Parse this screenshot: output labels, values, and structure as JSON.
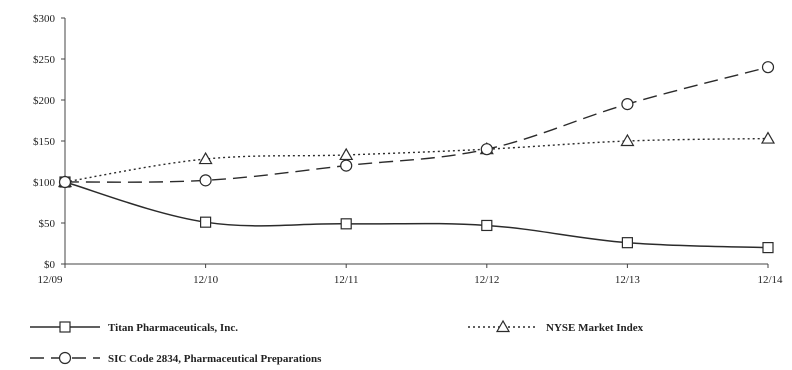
{
  "chart_data": {
    "type": "line",
    "title": "",
    "xlabel": "",
    "ylabel": "",
    "categories": [
      "12/09",
      "12/10",
      "12/11",
      "12/12",
      "12/13",
      "12/14"
    ],
    "y_tick_labels": [
      "$0",
      "$50",
      "$100",
      "$150",
      "$200",
      "$250",
      "$300"
    ],
    "y_ticks": [
      0,
      50,
      100,
      150,
      200,
      250,
      300
    ],
    "ylim": [
      0,
      300
    ],
    "grid": false,
    "legend_position": "bottom",
    "series": [
      {
        "name": "Titan Pharmaceuticals, Inc.",
        "values": [
          100,
          51,
          49,
          47,
          26,
          20
        ],
        "marker": "square",
        "line_style": "solid",
        "color": "#2b2b2b"
      },
      {
        "name": "NYSE Market Index",
        "values": [
          100,
          128,
          133,
          140,
          150,
          153
        ],
        "marker": "triangle",
        "line_style": "dotted",
        "color": "#2b2b2b"
      },
      {
        "name": "SIC Code 2834, Pharmaceutical Preparations",
        "values": [
          100,
          102,
          120,
          140,
          195,
          240
        ],
        "marker": "circle",
        "line_style": "dashed",
        "color": "#2b2b2b"
      }
    ]
  }
}
